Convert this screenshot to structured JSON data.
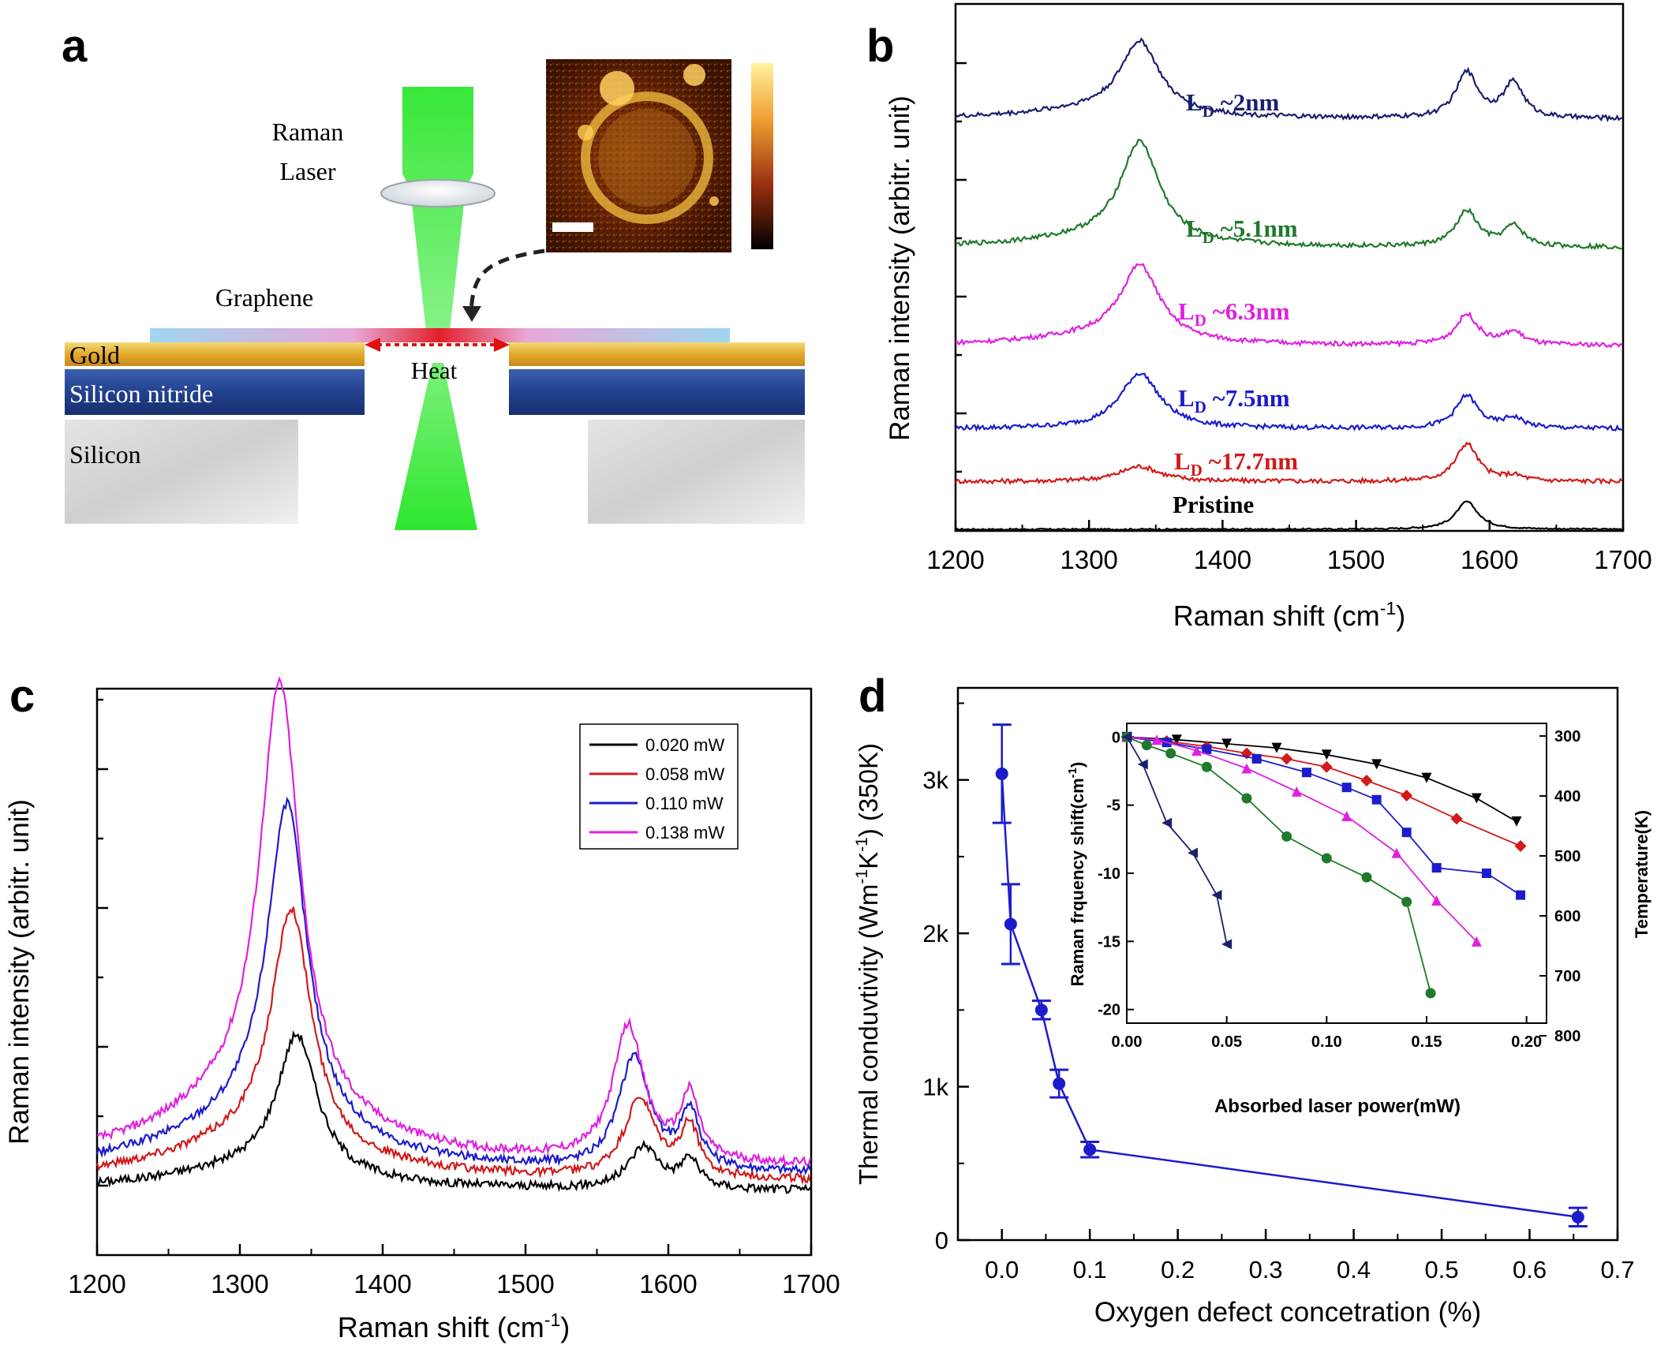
{
  "panels": {
    "a": {
      "letter": "a",
      "laser_label_line1": "Raman",
      "laser_label_line2": "Laser",
      "graphene_label": "Graphene",
      "gold_label": "Gold",
      "heat_label": "Heat",
      "nitride_label": "Silicon nitride",
      "silicon_label": "Silicon"
    },
    "b": {
      "letter": "b"
    },
    "c": {
      "letter": "c"
    },
    "d": {
      "letter": "d"
    }
  },
  "colors": {
    "navy": "#1a1f6e",
    "green": "#1f7a2a",
    "magenta": "#e020e0",
    "blue": "#1c1ccc",
    "red": "#d21a1a",
    "black": "#000000",
    "laser": "#2ee62e",
    "gold": "#e8b530",
    "nitride": "#24408e",
    "silicon": "#c9c9c9"
  },
  "chart_data": [
    {
      "id": "b",
      "type": "line",
      "xlabel": "Raman shift (cm",
      "xlabel_sup": "-1",
      "xlabel_end": ")",
      "ylabel": "Raman intensity (arbitr. unit)",
      "xlim": [
        1200,
        1700
      ],
      "ylim": [
        0,
        10
      ],
      "xticks": [
        "1200",
        "1300",
        "1400",
        "1500",
        "1600",
        "1700"
      ],
      "series": [
        {
          "name": "Pristine",
          "label": "Pristine",
          "color": "#000000",
          "offset": 0.0,
          "D": 0.0,
          "G": 0.55,
          "Dp": 0.0,
          "bg": 0.0
        },
        {
          "name": "LD ~17.7nm",
          "label_main": "L",
          "label_sub": "D",
          "label_rest": " ~17.7nm",
          "color": "#d21a1a",
          "offset": 0.9,
          "D": 0.3,
          "G": 0.75,
          "Dp": 0.1,
          "bg": 0.05
        },
        {
          "name": "LD ~7.5nm",
          "label_main": "L",
          "label_sub": "D",
          "label_rest": " ~7.5nm",
          "color": "#1c1ccc",
          "offset": 1.9,
          "D": 1.1,
          "G": 0.65,
          "Dp": 0.2,
          "bg": 0.1
        },
        {
          "name": "LD ~6.3nm",
          "label_main": "L",
          "label_sub": "D",
          "label_rest": " ~6.3nm",
          "color": "#e020e0",
          "offset": 3.5,
          "D": 1.5,
          "G": 0.6,
          "Dp": 0.25,
          "bg": 0.15
        },
        {
          "name": "LD ~5.1nm",
          "label_main": "L",
          "label_sub": "D",
          "label_rest": " ~5.1nm",
          "color": "#1f7a2a",
          "offset": 5.4,
          "D": 2.0,
          "G": 0.7,
          "Dp": 0.4,
          "bg": 0.2
        },
        {
          "name": "LD ~2nm",
          "label_main": "L",
          "label_sub": "D",
          "label_rest": " ~2nm",
          "color": "#1a1f6e",
          "offset": 7.9,
          "D": 1.45,
          "G": 0.9,
          "Dp": 0.7,
          "bg": 0.25
        }
      ]
    },
    {
      "id": "c",
      "type": "line",
      "xlabel": "Raman shift (cm",
      "xlabel_sup": "-1",
      "xlabel_end": ")",
      "ylabel": "Raman intensity (arbitr. unit)",
      "xlim": [
        1200,
        1700
      ],
      "ylim": [
        -0.4,
        3.6
      ],
      "xticks": [
        "1200",
        "1300",
        "1400",
        "1500",
        "1600",
        "1700"
      ],
      "series": [
        {
          "name": "0.020 mW",
          "color": "#000000",
          "D": 0.98,
          "G": 0.3,
          "Dp": 0.2,
          "Dpos": 1340,
          "Gpos": 1583,
          "bg": 0.05
        },
        {
          "name": "0.058 mW",
          "color": "#d21a1a",
          "D": 1.7,
          "G": 0.55,
          "Dp": 0.35,
          "Dpos": 1336,
          "Gpos": 1580,
          "bg": 0.12
        },
        {
          "name": "0.110 mW",
          "color": "#1c1ccc",
          "D": 2.3,
          "G": 0.8,
          "Dp": 0.4,
          "Dpos": 1333,
          "Gpos": 1576,
          "bg": 0.17
        },
        {
          "name": "0.138 mW",
          "color": "#e020e0",
          "D": 3.0,
          "G": 0.95,
          "Dp": 0.45,
          "Dpos": 1328,
          "Gpos": 1572,
          "bg": 0.22
        }
      ]
    },
    {
      "id": "d",
      "type": "scatter",
      "xlabel": "Oxygen defect concetration (%)",
      "ylabel": "Thermal conduvtivity (Wm",
      "ylabel_sup1": "-1",
      "ylabel_mid": "K",
      "ylabel_sup2": "-1",
      "ylabel_end": ") (350K)",
      "xlim": [
        -0.05,
        0.7
      ],
      "ylim": [
        0,
        3600
      ],
      "xticks": [
        "0.0",
        "0.1",
        "0.2",
        "0.3",
        "0.4",
        "0.5",
        "0.6",
        "0.7"
      ],
      "yticks": [
        "0",
        "1k",
        "2k",
        "3k"
      ],
      "x": [
        0.0,
        0.01,
        0.045,
        0.065,
        0.1,
        0.655
      ],
      "y": [
        3040,
        2060,
        1500,
        1020,
        590,
        150
      ],
      "err": [
        320,
        260,
        60,
        90,
        50,
        60
      ],
      "color": "#1c1ccc"
    },
    {
      "id": "d-inset",
      "type": "line",
      "xlabel": "Absorbed laser power(mW)",
      "ylabel": "Raman frquency shift(cm",
      "ylabel_sup": "-1",
      "ylabel_end": ")",
      "y2label": "Temperature(K)",
      "xlim": [
        0.0,
        0.21
      ],
      "ylim": [
        -21,
        1
      ],
      "xticks": [
        "0.00",
        "0.05",
        "0.10",
        "0.15",
        "0.20"
      ],
      "yticks": [
        "0",
        "-5",
        "-10",
        "-15",
        "-20"
      ],
      "y2ticks": [
        "300",
        "400",
        "500",
        "600",
        "700",
        "800"
      ],
      "series": [
        {
          "name": "black",
          "marker": "tri-down",
          "color": "#000000",
          "x": [
            0.0,
            0.025,
            0.05,
            0.075,
            0.1,
            0.125,
            0.15,
            0.175,
            0.195
          ],
          "y": [
            0,
            -0.2,
            -0.5,
            -0.8,
            -1.3,
            -2.0,
            -3.0,
            -4.5,
            -6.2
          ]
        },
        {
          "name": "red",
          "marker": "diamond",
          "color": "#d21a1a",
          "x": [
            0.0,
            0.02,
            0.04,
            0.06,
            0.08,
            0.1,
            0.12,
            0.14,
            0.165,
            0.197
          ],
          "y": [
            0,
            -0.3,
            -0.7,
            -1.2,
            -1.6,
            -2.2,
            -3.2,
            -4.3,
            -6.0,
            -8.0
          ]
        },
        {
          "name": "blue",
          "marker": "square",
          "color": "#1c1ccc",
          "x": [
            0.0,
            0.02,
            0.04,
            0.065,
            0.09,
            0.11,
            0.125,
            0.14,
            0.155,
            0.18,
            0.197
          ],
          "y": [
            0,
            -0.4,
            -0.9,
            -1.6,
            -2.6,
            -3.7,
            -4.6,
            -7.0,
            -9.6,
            -10.0,
            -11.6
          ]
        },
        {
          "name": "magenta",
          "marker": "triangle",
          "color": "#e020e0",
          "x": [
            0.0,
            0.015,
            0.035,
            0.06,
            0.085,
            0.11,
            0.135,
            0.155,
            0.175
          ],
          "y": [
            0,
            -0.2,
            -1.0,
            -2.3,
            -4.0,
            -5.8,
            -8.5,
            -12.0,
            -15.0
          ]
        },
        {
          "name": "green",
          "marker": "circle",
          "color": "#1f7a2a",
          "x": [
            0.0,
            0.01,
            0.022,
            0.04,
            0.06,
            0.08,
            0.1,
            0.12,
            0.14,
            0.152
          ],
          "y": [
            0,
            -0.6,
            -1.2,
            -2.2,
            -4.5,
            -7.3,
            -8.9,
            -10.3,
            -12.1,
            -18.8
          ]
        },
        {
          "name": "navy",
          "marker": "tri-left",
          "color": "#1a1f6e",
          "x": [
            0.0,
            0.008,
            0.02,
            0.033,
            0.045,
            0.05
          ],
          "y": [
            0,
            -2.0,
            -6.3,
            -8.5,
            -11.6,
            -15.2
          ]
        }
      ]
    }
  ]
}
